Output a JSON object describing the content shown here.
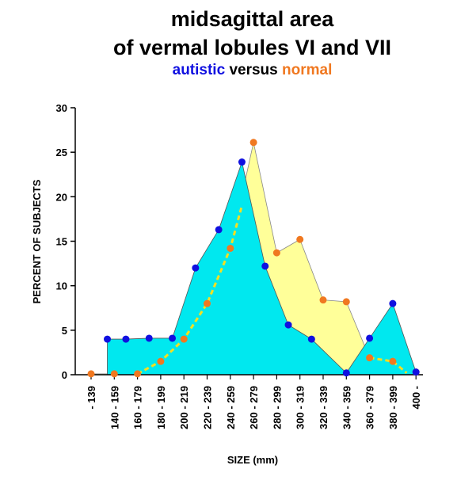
{
  "header": {
    "title_line1": "midsagittal area",
    "title_line2": "of vermal lobules VI and VII",
    "subtitle_part1": "autistic",
    "subtitle_part2": "versus",
    "subtitle_part3": "normal"
  },
  "colors": {
    "autistic_fill": "#00e8ef",
    "autistic_marker": "#1010e0",
    "normal_fill": "#ffff99",
    "normal_marker": "#f07820",
    "normal_dashed_line": "#f5e020",
    "axis": "#000000"
  },
  "chart_data": {
    "type": "area",
    "title": "midsagittal area of vermal lobules VI and VII",
    "subtitle": "autistic versus normal",
    "xlabel": "SIZE (mm)",
    "ylabel": "PERCENT OF SUBJECTS",
    "categories": [
      "- 139",
      "140 - 159",
      "160 - 179",
      "180 - 199",
      "200 - 219",
      "220 - 239",
      "240 - 259",
      "260 - 279",
      "280 - 299",
      "300 - 319",
      "320 - 339",
      "340 - 359",
      "360 - 379",
      "380 - 399",
      "400 -"
    ],
    "ylim": [
      0,
      30
    ],
    "yticks": [
      "0",
      "5",
      "10",
      "15",
      "20",
      "25",
      "30"
    ],
    "series": [
      {
        "name": "autistic",
        "x": [
          0.7,
          1.5,
          2.5,
          3.5,
          4.5,
          5.5,
          6.5,
          7.5,
          8.5,
          9.5,
          11.0,
          12.0,
          13.0,
          14.0
        ],
        "values": [
          4.0,
          4.0,
          4.1,
          4.1,
          12.0,
          16.3,
          23.9,
          12.2,
          5.6,
          4.0,
          0.2,
          4.1,
          8.0,
          0.3
        ]
      },
      {
        "name": "normal",
        "x": [
          0.0,
          1.0,
          2.0,
          3.0,
          4.0,
          5.0,
          6.0,
          7.0,
          8.0,
          9.0,
          10.0,
          11.0,
          12.0,
          13.0,
          14.0
        ],
        "values": [
          0.1,
          0.1,
          0.1,
          1.5,
          4.0,
          8.0,
          14.2,
          26.1,
          13.7,
          15.2,
          8.4,
          8.2,
          1.9,
          1.5,
          0.3
        ]
      }
    ],
    "annotations": [
      "dashed yellow curve connecting the normal-distribution points on the rising and falling sides"
    ],
    "grid": false,
    "legend": "subtitle-colored-words"
  }
}
